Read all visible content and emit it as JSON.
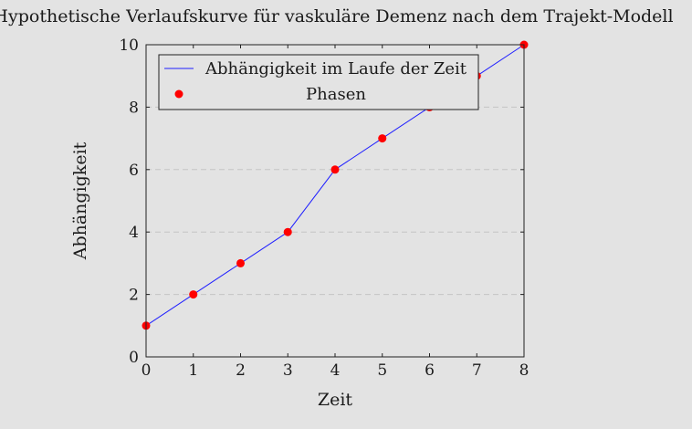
{
  "chart_data": {
    "type": "line",
    "title": "Hypothetische Verlaufskurve für vaskuläre Demenz nach dem Trajekt-Modell",
    "xlabel": "Zeit",
    "ylabel": "Abhängigkeit",
    "xlim": [
      0,
      8
    ],
    "ylim": [
      0,
      10
    ],
    "x_ticks": [
      0,
      1,
      2,
      3,
      4,
      5,
      6,
      7,
      8
    ],
    "y_ticks": [
      0,
      2,
      4,
      6,
      8,
      10
    ],
    "grid": "horizontal-dashed",
    "legend_position": "top-left",
    "series": [
      {
        "name": "Abhängigkeit im Laufe der Zeit",
        "kind": "line",
        "color": "#1f1fff",
        "x": [
          0,
          1,
          2,
          3,
          4,
          5,
          6,
          7,
          8
        ],
        "y": [
          1,
          2,
          3,
          4,
          6,
          7,
          8,
          9,
          10
        ]
      },
      {
        "name": "Phasen",
        "kind": "scatter",
        "color": "#ff0000",
        "x": [
          0,
          1,
          2,
          3,
          4,
          5,
          6,
          7,
          8
        ],
        "y": [
          1,
          2,
          3,
          4,
          6,
          7,
          8,
          9,
          10
        ]
      }
    ]
  }
}
